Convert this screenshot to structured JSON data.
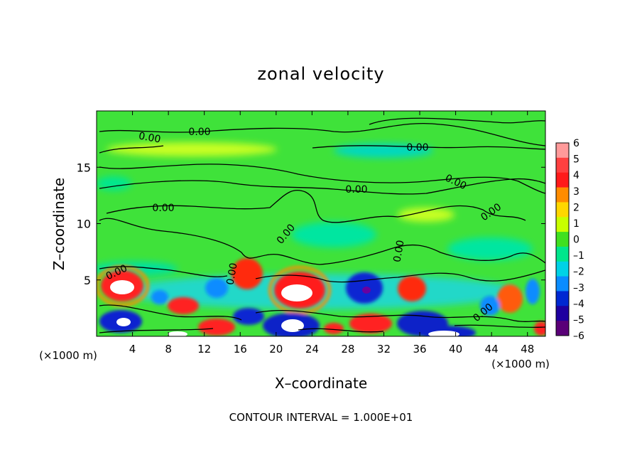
{
  "chart_data": {
    "type": "heatmap",
    "title": "zonal velocity",
    "xlabel": "X–coordinate",
    "ylabel": "Z–coordinate",
    "x_unit_label": "(×1000 m)",
    "x_unit_label_right": "(×1000 m)",
    "xlim": [
      0,
      50
    ],
    "ylim": [
      0,
      20
    ],
    "x_ticks": [
      "4",
      "8",
      "12",
      "16",
      "20",
      "24",
      "28",
      "32",
      "36",
      "40",
      "44",
      "48"
    ],
    "x_tick_values": [
      4,
      8,
      12,
      16,
      20,
      24,
      28,
      32,
      36,
      40,
      44,
      48
    ],
    "y_ticks": [
      "5",
      "10",
      "15"
    ],
    "y_tick_values": [
      5,
      10,
      15
    ],
    "colorbar": {
      "min": -6,
      "max": 6,
      "labels": [
        "6",
        "5",
        "4",
        "3",
        "2",
        "1",
        "0",
        "–1",
        "–2",
        "–3",
        "–4",
        "–5",
        "–6"
      ],
      "values": [
        6,
        5,
        4,
        3,
        2,
        1,
        0,
        -1,
        -2,
        -3,
        -4,
        -5,
        -6
      ],
      "colors": [
        "#ff9a9a",
        "#ff4040",
        "#ff1a1a",
        "#ff8c00",
        "#ffd700",
        "#c8ff00",
        "#40e020",
        "#00e68c",
        "#00d2e6",
        "#0a8cff",
        "#0028d2",
        "#1e00a0",
        "#5a0078"
      ]
    },
    "contour_level_label": "0.00",
    "contour_interval_text": "CONTOUR INTERVAL = 1.000E+01",
    "features": [
      {
        "x": 3.5,
        "z": 5.0,
        "value": 6,
        "sign": "positive"
      },
      {
        "x": 4.0,
        "z": 1.4,
        "value": -6,
        "sign": "negative"
      },
      {
        "x": 9.5,
        "z": 2.8,
        "value": 5,
        "sign": "positive"
      },
      {
        "x": 17.0,
        "z": 5.2,
        "value": 5,
        "sign": "positive"
      },
      {
        "x": 22.5,
        "z": 4.0,
        "value": 6,
        "sign": "positive"
      },
      {
        "x": 21.0,
        "z": 1.0,
        "value": -6,
        "sign": "negative"
      },
      {
        "x": 30.5,
        "z": 4.0,
        "value": -6,
        "sign": "negative"
      },
      {
        "x": 35.0,
        "z": 4.0,
        "value": 4,
        "sign": "positive"
      },
      {
        "x": 39.0,
        "z": 0.5,
        "value": -6,
        "sign": "negative"
      },
      {
        "x": 45.5,
        "z": 4.0,
        "value": 4,
        "sign": "positive"
      }
    ],
    "grid": false
  }
}
